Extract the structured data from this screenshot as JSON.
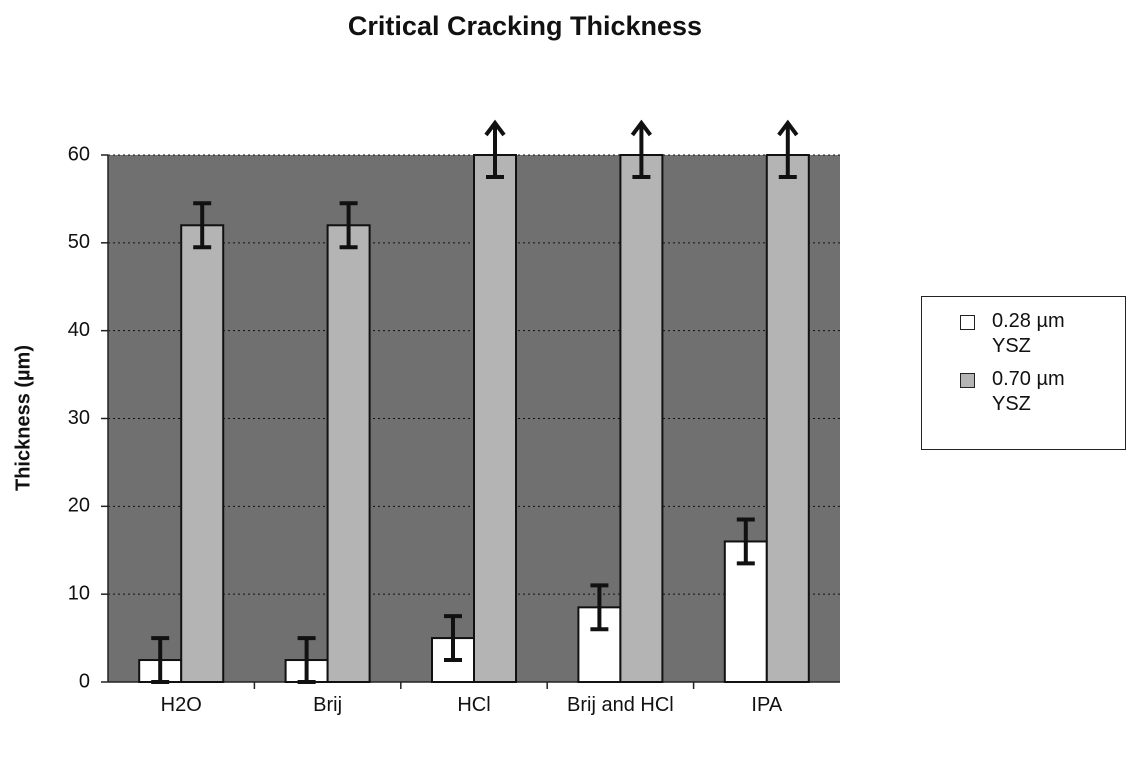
{
  "chart_data": {
    "type": "bar",
    "title": "Critical Cracking Thickness",
    "ylabel": "Thickness (µm)",
    "categories": [
      "H2O",
      "Brij",
      "HCl",
      "Brij and HCl",
      "IPA"
    ],
    "series": [
      {
        "name": "0.28 µm YSZ",
        "color": "#ffffff",
        "values": [
          2.5,
          2.5,
          5,
          8.5,
          16
        ],
        "errors": [
          2.5,
          2.5,
          2.5,
          2.5,
          2.5
        ]
      },
      {
        "name": "0.70 µm YSZ",
        "color": "#b4b4b4",
        "values": [
          52,
          52,
          60,
          60,
          60
        ],
        "errors": [
          2.5,
          2.5,
          2.5,
          2.5,
          2.5
        ]
      }
    ],
    "ylim": [
      0,
      60
    ],
    "yticks": [
      0,
      10,
      20,
      30,
      40,
      50,
      60
    ],
    "grid": true,
    "plot_background": "#707070"
  }
}
